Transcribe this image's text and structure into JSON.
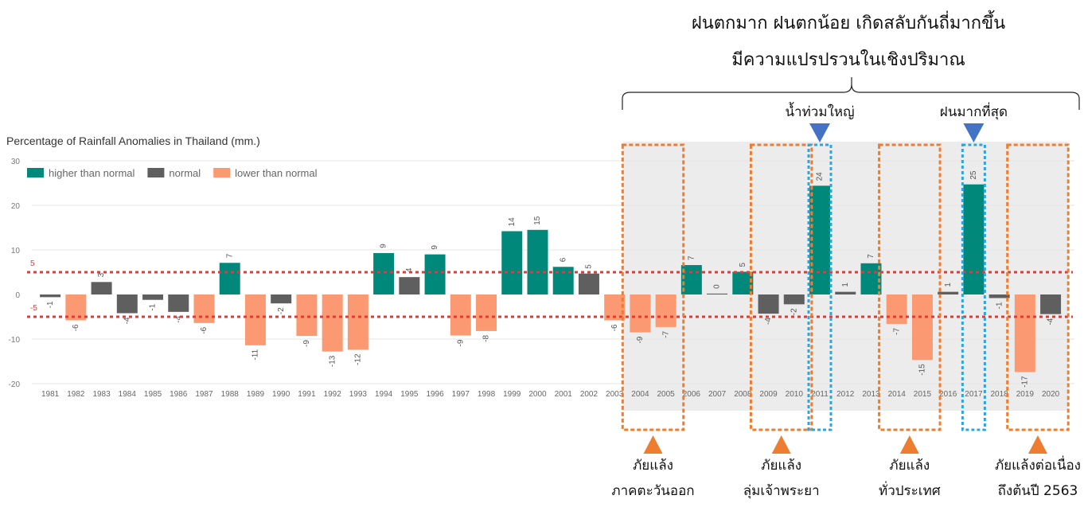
{
  "chart_data": {
    "type": "bar",
    "title": "Percentage of Rainfall Anomalies in Thailand  (mm.)",
    "xlabel": "",
    "ylabel": "",
    "ylim": [
      -20,
      30
    ],
    "yticks": [
      30,
      20,
      10,
      0,
      -10,
      -20
    ],
    "threshold_lines": [
      {
        "label": "5",
        "value": 5
      },
      {
        "label": "-5",
        "value": -5
      }
    ],
    "legend": [
      {
        "key": "high",
        "label": "higher than normal"
      },
      {
        "key": "normal",
        "label": "normal"
      },
      {
        "key": "low",
        "label": "lower than normal"
      }
    ],
    "colors": {
      "high": "#00897b",
      "normal": "#5f5f5f",
      "low": "#fb9a72",
      "threshold": "#e53935"
    },
    "categories": [
      "1981",
      "1982",
      "1983",
      "1984",
      "1985",
      "1986",
      "1987",
      "1988",
      "1989",
      "1990",
      "1991",
      "1992",
      "1993",
      "1994",
      "1995",
      "1996",
      "1997",
      "1998",
      "1999",
      "2000",
      "2001",
      "2002",
      "2003",
      "2004",
      "2005",
      "2006",
      "2007",
      "2008",
      "2009",
      "2010",
      "2011",
      "2012",
      "2013",
      "2014",
      "2015",
      "2016",
      "2017",
      "2018",
      "2019",
      "2020"
    ],
    "values": [
      -0.6,
      -5.8,
      2.8,
      -4.2,
      -1.2,
      -3.9,
      -6.4,
      7.1,
      -11.4,
      -2.0,
      -9.3,
      -12.8,
      -12.4,
      9.3,
      3.9,
      9.0,
      -9.2,
      -8.2,
      14.2,
      14.5,
      6.2,
      4.7,
      -5.8,
      -8.5,
      -7.3,
      6.6,
      0.2,
      5.1,
      -4.3,
      -2.2,
      24.4,
      0.6,
      7.0,
      -6.6,
      -14.7,
      0.6,
      24.7,
      -0.8,
      -17.4,
      -4.4
    ],
    "labels": [
      "-1",
      "-6",
      "3",
      "-4",
      "-1",
      "-4",
      "-6",
      "7",
      "-11",
      "-2",
      "-9",
      "-13",
      "-12",
      "9",
      "4",
      "9",
      "-9",
      "-8",
      "14",
      "15",
      "6",
      "5",
      "-6",
      "-9",
      "-7",
      "7",
      "0",
      "5",
      "-4",
      "-2",
      "24",
      "1",
      "7",
      "-7",
      "-15",
      "1",
      "25",
      "-1",
      "-17",
      "-4"
    ],
    "series_class": [
      "normal",
      "low",
      "normal",
      "normal",
      "normal",
      "normal",
      "low",
      "high",
      "low",
      "normal",
      "low",
      "low",
      "low",
      "high",
      "normal",
      "high",
      "low",
      "low",
      "high",
      "high",
      "high",
      "normal",
      "low",
      "low",
      "low",
      "high",
      "normal",
      "high",
      "normal",
      "normal",
      "high",
      "normal",
      "high",
      "low",
      "low",
      "normal",
      "high",
      "normal",
      "low",
      "normal"
    ]
  },
  "annotations": {
    "headline": [
      "ฝนตกมาก ฝนตกน้อย เกิดสลับกันถี่มากขึ้น",
      "มีความแปรปรวนในเชิงปริมาณ"
    ],
    "highlight_start": "2004",
    "highlight_end": "2020",
    "flood_boxes": [
      {
        "year": "2011",
        "label": "น้ำท่วมใหญ่"
      },
      {
        "year": "2017",
        "label": "ฝนมากที่สุด"
      }
    ],
    "drought_boxes": [
      {
        "from": "2004",
        "to": "2005",
        "lines": [
          "ภัยแล้ง",
          "ภาคตะวันออก"
        ]
      },
      {
        "from": "2009",
        "to": "2010",
        "lines": [
          "ภัยแล้ง",
          "ลุ่มเจ้าพระยา"
        ]
      },
      {
        "from": "2014",
        "to": "2015",
        "lines": [
          "ภัยแล้ง",
          "ทั่วประเทศ"
        ]
      },
      {
        "from": "2019",
        "to": "2020",
        "lines": [
          "ภัยแล้งต่อเนื่อง",
          "ถึงต้นปี 2563"
        ]
      }
    ],
    "colors": {
      "drought_box": "#ed7d31",
      "flood_box": "#29a8e0",
      "flood_marker": "#4472c4",
      "highlight_bg": "#ececec"
    }
  }
}
